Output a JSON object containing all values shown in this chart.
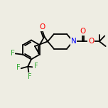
{
  "bg_color": "#eeede3",
  "bond_color": "#000000",
  "atom_colors": {
    "O": "#ff0000",
    "F": "#33aa33",
    "N": "#0000ff",
    "C": "#000000"
  },
  "bond_width": 1.3,
  "font_size_atom": 7.5
}
